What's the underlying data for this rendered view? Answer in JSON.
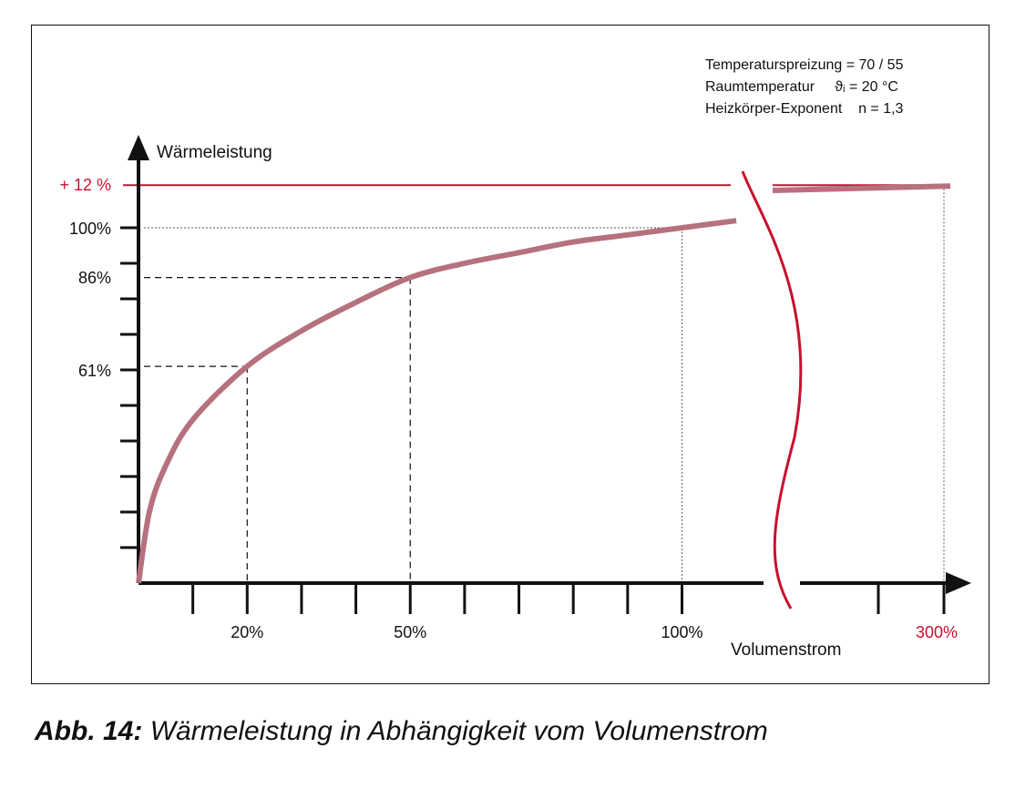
{
  "chart_data": {
    "type": "line",
    "ylabel": "Wärmeleistung",
    "xlabel": "Volumenstrom",
    "y_tick_labels": [
      "+ 12 %",
      "100%",
      "86%",
      "61%"
    ],
    "x_tick_labels": [
      "20%",
      "50%",
      "100%",
      "300%"
    ],
    "annotations": [
      "Temperaturspreizung = 70 / 55",
      "Raumtemperatur     ϑᵢ = 20 °C",
      "Heizkörper-Exponent    n = 1,3"
    ],
    "series": [
      {
        "values_note": "",
        "x": [
          0,
          2,
          5,
          10,
          20,
          30,
          40,
          50,
          60,
          70,
          80,
          90,
          100,
          110,
          300
        ],
        "y": [
          0,
          20,
          33,
          46,
          61,
          71,
          79,
          86,
          90,
          93,
          96,
          98,
          100,
          102,
          112
        ]
      }
    ],
    "reference_points": [
      {
        "x": 20,
        "y": 61
      },
      {
        "x": 50,
        "y": 86
      },
      {
        "x": 100,
        "y": 100
      },
      {
        "x": 300,
        "y": 112
      }
    ],
    "axis_break": true,
    "grid": false,
    "colors": {
      "curve": "#b5727e",
      "accent": "#c8102e",
      "axis": "#111111"
    }
  },
  "caption": {
    "lead": "Abb. 14:",
    "text": " Wärmeleistung in Abhängigkeit vom Volumenstrom"
  }
}
